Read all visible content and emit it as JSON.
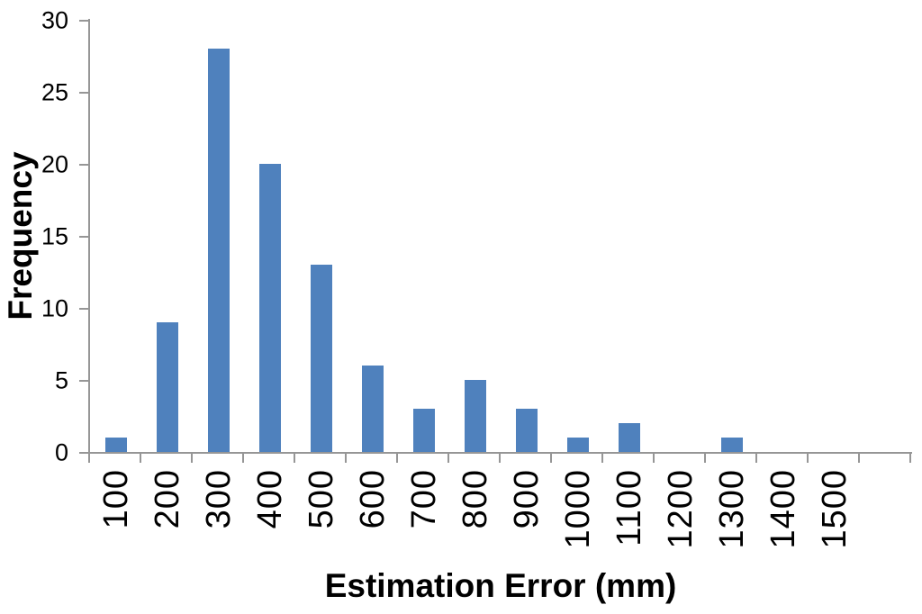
{
  "chart_data": {
    "type": "bar",
    "xlabel": "Estimation Error (mm)",
    "ylabel": "Frequency",
    "categories": [
      "100",
      "200",
      "300",
      "400",
      "500",
      "600",
      "700",
      "800",
      "900",
      "1000",
      "1100",
      "1200",
      "1300",
      "1400",
      "1500"
    ],
    "values": [
      1,
      9,
      28,
      20,
      13,
      6,
      3,
      5,
      3,
      1,
      2,
      0,
      1,
      0,
      0
    ],
    "ylim": [
      0,
      30
    ],
    "ytick_step": 5,
    "yticks": [
      0,
      5,
      10,
      15,
      20,
      25,
      30
    ],
    "grid": false,
    "legend_position": "none",
    "layout": {
      "x_tick_label_rotation_degrees": 90,
      "trailing_empty_slots": 1,
      "bars_per_slot": 1
    },
    "colors": {
      "bar": "#4F81BD",
      "axis": "#969696",
      "text": "#000000",
      "background": "#FFFFFF"
    }
  }
}
